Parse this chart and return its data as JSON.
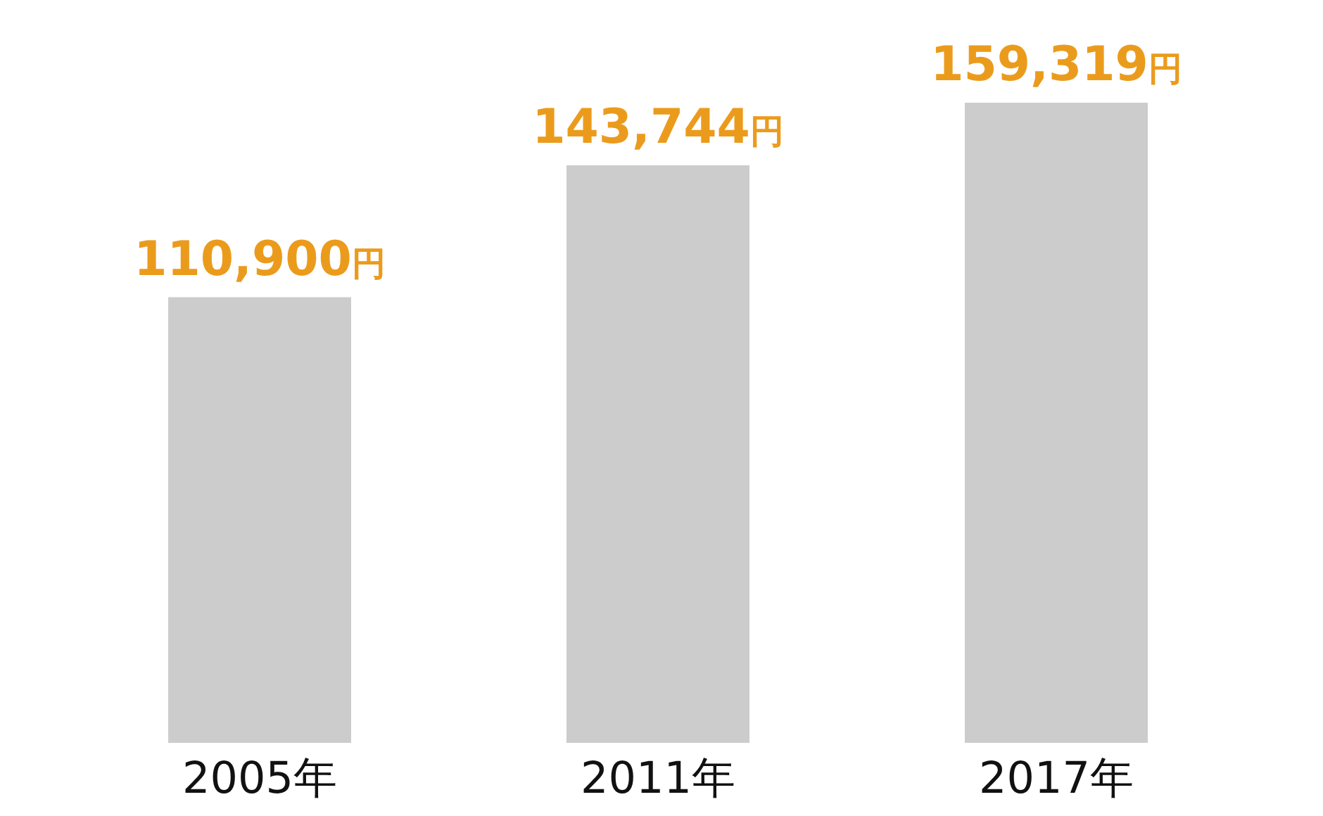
{
  "chart_data": {
    "type": "bar",
    "categories": [
      "2005年",
      "2011年",
      "2017年"
    ],
    "values": [
      110900,
      143744,
      159319
    ],
    "value_labels": [
      "110,900円",
      "143,744円",
      "159,319円"
    ],
    "color": "#cbcccb"
  }
}
